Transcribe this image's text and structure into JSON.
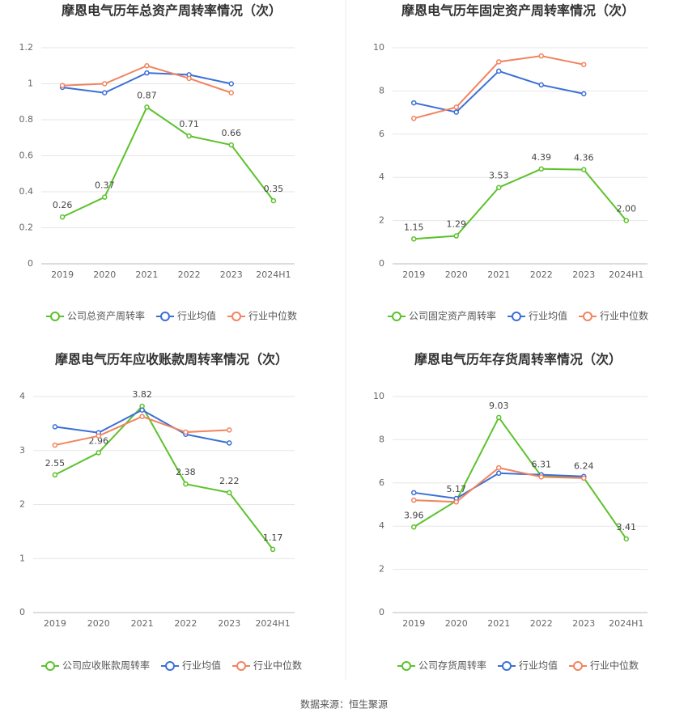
{
  "chart_data": [
    {
      "type": "line",
      "title": "摩恩电气历年总资产周转率情况（次）",
      "categories": [
        "2019",
        "2020",
        "2021",
        "2022",
        "2023",
        "2024H1"
      ],
      "ylim": [
        0,
        1.2
      ],
      "yticks": [
        0,
        0.2,
        0.4,
        0.6,
        0.8,
        1,
        1.2
      ],
      "grid": true,
      "series": [
        {
          "name": "公司总资产周转率",
          "color": "#5cc22c",
          "values": [
            0.26,
            0.37,
            0.87,
            0.71,
            0.66,
            0.35
          ],
          "value_labels": [
            "0.26",
            "0.37",
            "0.87",
            "0.71",
            "0.66",
            "0.35"
          ]
        },
        {
          "name": "行业均值",
          "color": "#3b6fd6",
          "values": [
            0.98,
            0.95,
            1.06,
            1.05,
            1.0,
            null
          ]
        },
        {
          "name": "行业中位数",
          "color": "#f0845f",
          "values": [
            0.99,
            1.0,
            1.1,
            1.03,
            0.95,
            null
          ]
        }
      ]
    },
    {
      "type": "line",
      "title": "摩恩电气历年固定资产周转率情况（次）",
      "categories": [
        "2019",
        "2020",
        "2021",
        "2022",
        "2023",
        "2024H1"
      ],
      "ylim": [
        0,
        10
      ],
      "yticks": [
        0,
        2,
        4,
        6,
        8,
        10
      ],
      "grid": true,
      "series": [
        {
          "name": "公司固定资产周转率",
          "color": "#5cc22c",
          "values": [
            1.15,
            1.29,
            3.53,
            4.39,
            4.36,
            2.0
          ],
          "value_labels": [
            "1.15",
            "1.29",
            "3.53",
            "4.39",
            "4.36",
            "2.00"
          ]
        },
        {
          "name": "行业均值",
          "color": "#3b6fd6",
          "values": [
            7.45,
            7.02,
            8.92,
            8.28,
            7.87,
            null
          ]
        },
        {
          "name": "行业中位数",
          "color": "#f0845f",
          "values": [
            6.73,
            7.25,
            9.35,
            9.62,
            9.22,
            null
          ]
        }
      ]
    },
    {
      "type": "line",
      "title": "摩恩电气历年应收账款周转率情况（次）",
      "categories": [
        "2019",
        "2020",
        "2021",
        "2022",
        "2023",
        "2024H1"
      ],
      "ylim": [
        0,
        4
      ],
      "yticks": [
        0,
        1,
        2,
        3,
        4
      ],
      "grid": true,
      "series": [
        {
          "name": "公司应收账款周转率",
          "color": "#5cc22c",
          "values": [
            2.55,
            2.96,
            3.82,
            2.38,
            2.22,
            1.17
          ],
          "value_labels": [
            "2.55",
            "2.96",
            "3.82",
            "2.38",
            "2.22",
            "1.17"
          ]
        },
        {
          "name": "行业均值",
          "color": "#3b6fd6",
          "values": [
            3.44,
            3.33,
            3.75,
            3.3,
            3.14,
            null
          ]
        },
        {
          "name": "行业中位数",
          "color": "#f0845f",
          "values": [
            3.1,
            3.27,
            3.63,
            3.34,
            3.38,
            null
          ]
        }
      ]
    },
    {
      "type": "line",
      "title": "摩恩电气历年存货周转率情况（次）",
      "categories": [
        "2019",
        "2020",
        "2021",
        "2022",
        "2023",
        "2024H1"
      ],
      "ylim": [
        0,
        10
      ],
      "yticks": [
        0,
        2,
        4,
        6,
        8,
        10
      ],
      "grid": true,
      "series": [
        {
          "name": "公司存货周转率",
          "color": "#5cc22c",
          "values": [
            3.96,
            5.17,
            9.03,
            6.31,
            6.24,
            3.41
          ],
          "value_labels": [
            "3.96",
            "5.17",
            "9.03",
            "6.31",
            "6.24",
            "3.41"
          ]
        },
        {
          "name": "行业均值",
          "color": "#3b6fd6",
          "values": [
            5.55,
            5.28,
            6.45,
            6.38,
            6.3,
            null
          ]
        },
        {
          "name": "行业中位数",
          "color": "#f0845f",
          "values": [
            5.2,
            5.12,
            6.7,
            6.28,
            6.22,
            null
          ]
        }
      ]
    }
  ],
  "source": "数据来源：恒生聚源"
}
